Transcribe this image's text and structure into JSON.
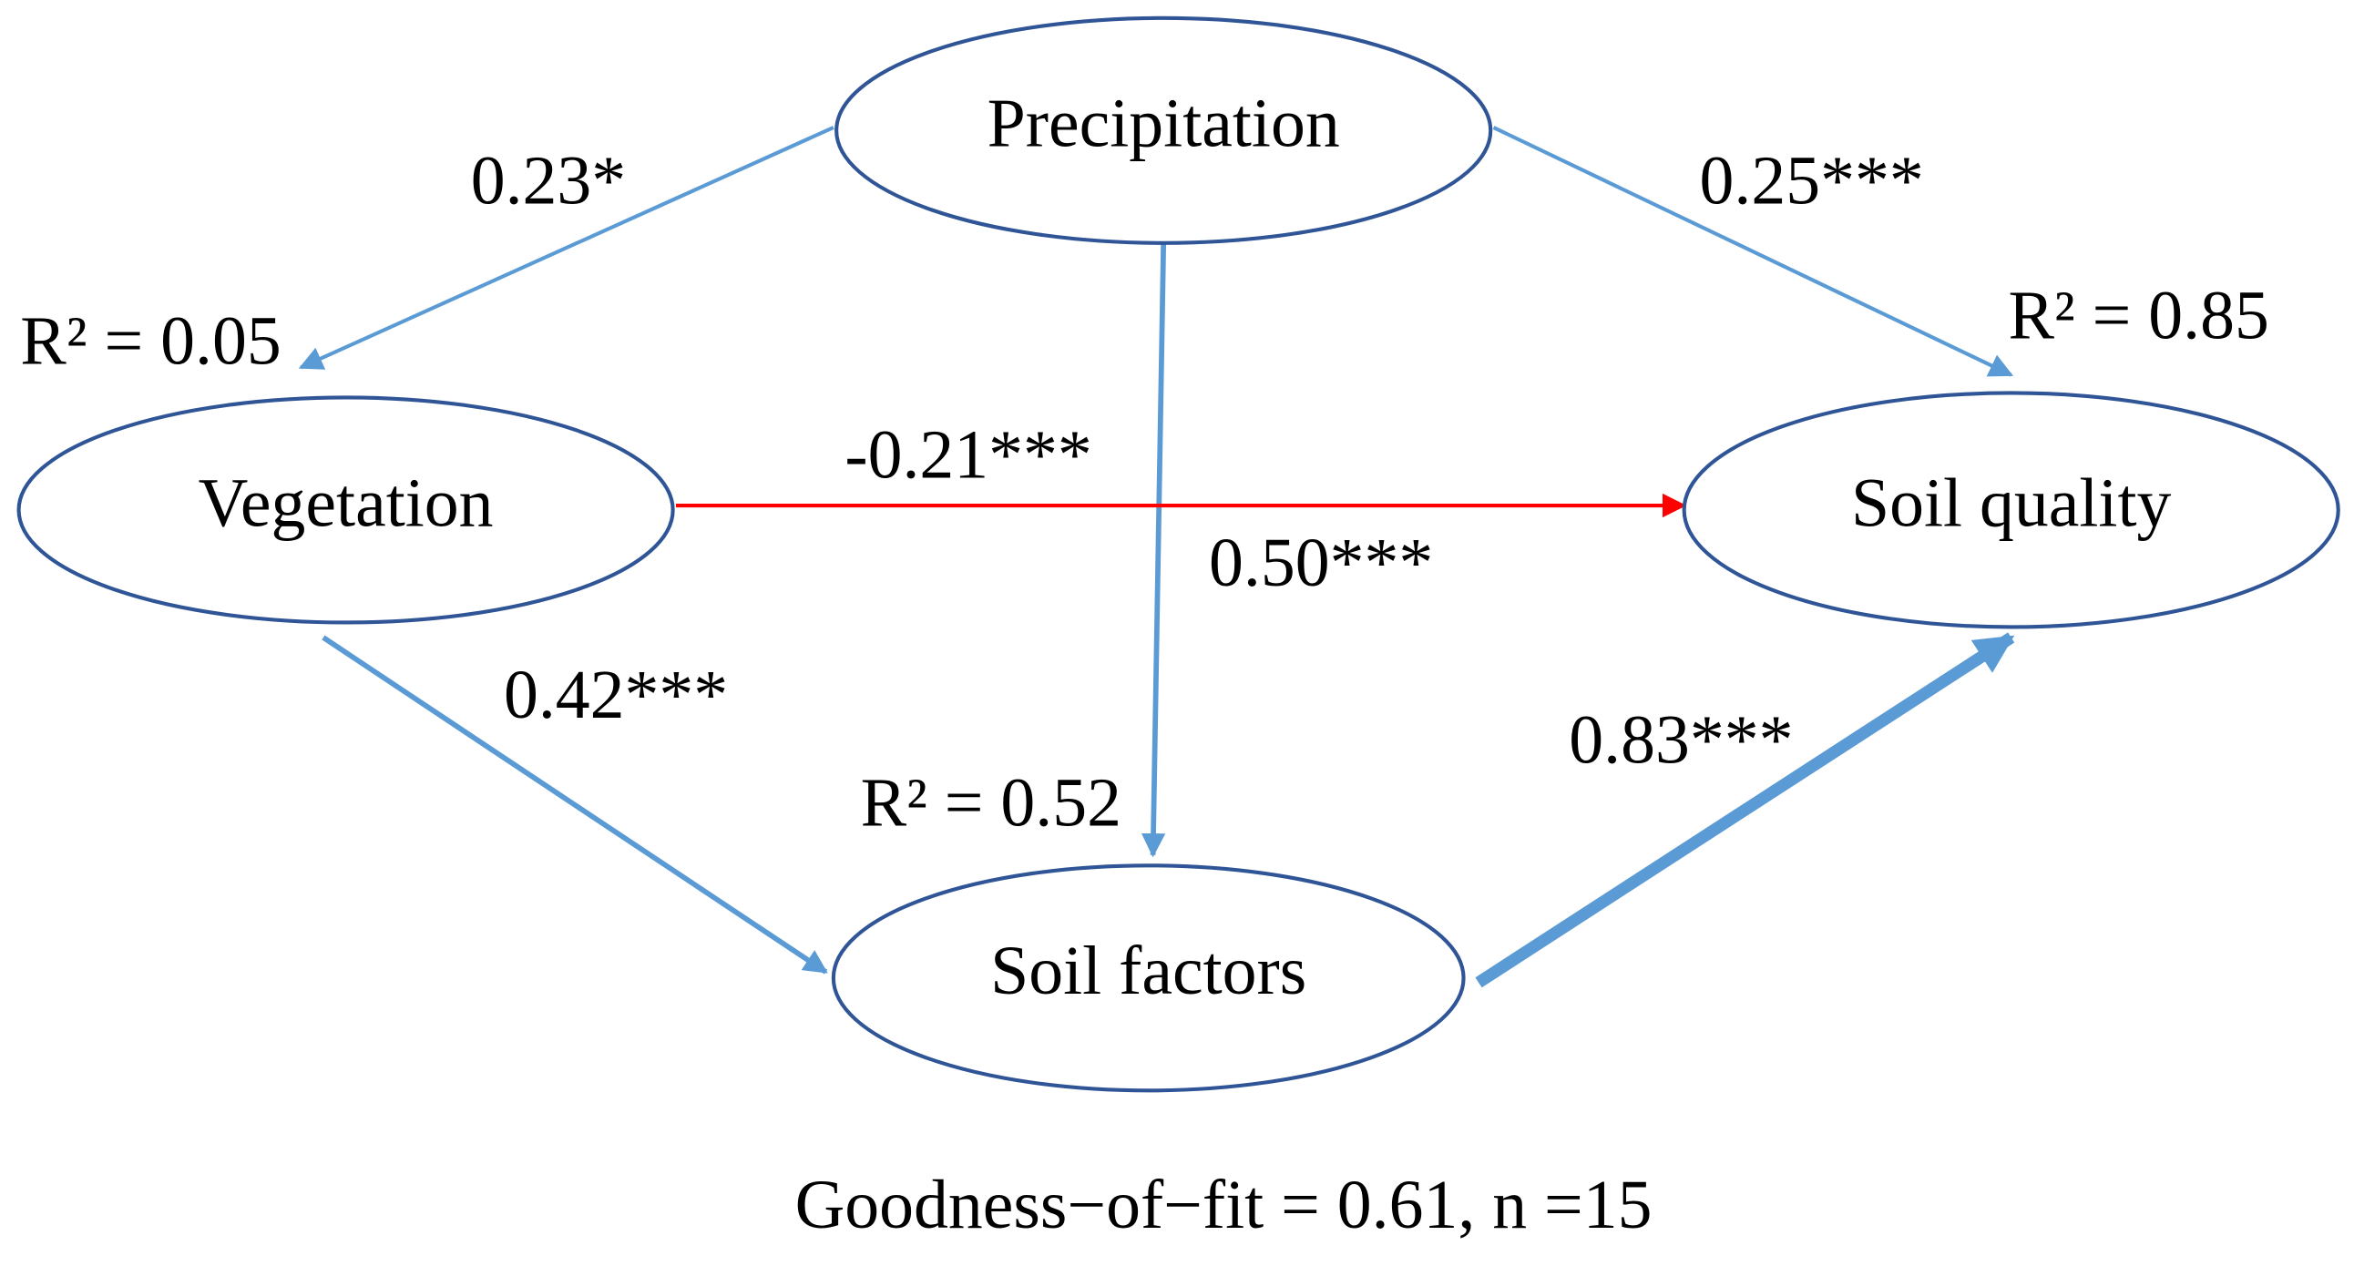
{
  "nodes": [
    {
      "label": "Precipitation"
    },
    {
      "label": "Vegetation"
    },
    {
      "label": "Soil quality"
    },
    {
      "label": "Soil factors"
    }
  ],
  "edges": [
    {
      "label": "0.23*"
    },
    {
      "label": "0.25***"
    },
    {
      "label": "0.50***"
    },
    {
      "label": "-0.21***"
    },
    {
      "label": "0.42***"
    },
    {
      "label": "0.83***"
    }
  ],
  "r2_labels": [
    "R² = 0.05",
    "R² = 0.85",
    "R² = 0.52"
  ],
  "footer": "Goodness−of−fit = 0.61, n =15"
}
